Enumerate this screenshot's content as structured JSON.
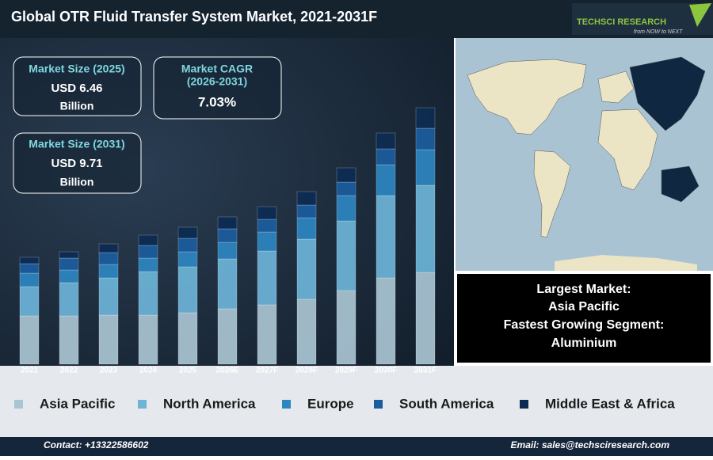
{
  "header": {
    "title": "Global OTR Fluid Transfer System Market, 2021-2031F"
  },
  "logo": {
    "name": "TECHSCI RESEARCH",
    "tagline": "from NOW to NEXT"
  },
  "kpis": [
    {
      "label": "Market Size (2025)",
      "value": "USD 6.46",
      "unit": "Billion"
    },
    {
      "label": "Market CAGR",
      "period": "(2026-2031)",
      "value": "7.03%"
    },
    {
      "label": "Market Size (2031)",
      "value": "USD 9.71",
      "unit": "Billion"
    }
  ],
  "highlights": [
    "Largest Market:",
    "Asia Pacific",
    "Fastest Growing Segment:",
    "Aluminium"
  ],
  "footer": {
    "contact": "Contact: +13322586602",
    "email": "Email: sales@techsciresearch.com"
  },
  "chart_data": {
    "type": "bar",
    "stacked": true,
    "categories": [
      "2021",
      "2022",
      "2023",
      "2024",
      "2025",
      "2026E",
      "2027F",
      "2028F",
      "2029F",
      "2030F",
      "2031F"
    ],
    "series": [
      {
        "name": "Asia Pacific",
        "color": "#a9c4d2",
        "values": [
          61,
          61,
          62,
          62,
          65,
          70,
          75,
          82,
          93,
          109,
          116
        ]
      },
      {
        "name": "North America",
        "color": "#6db4d8",
        "values": [
          37,
          42,
          47,
          55,
          58,
          63,
          68,
          76,
          88,
          104,
          110
        ]
      },
      {
        "name": "Europe",
        "color": "#2e86c1",
        "values": [
          17,
          16,
          17,
          17,
          19,
          21,
          24,
          27,
          32,
          39,
          45
        ]
      },
      {
        "name": "South America",
        "color": "#1b5c9e",
        "values": [
          12,
          15,
          15,
          16,
          17,
          17,
          16,
          16,
          17,
          20,
          27
        ]
      },
      {
        "name": "Middle East & Africa",
        "color": "#0d2b52",
        "values": [
          8,
          8,
          11,
          13,
          14,
          15,
          16,
          17,
          18,
          20,
          26
        ]
      }
    ],
    "ylim": [
      0,
      340
    ]
  }
}
